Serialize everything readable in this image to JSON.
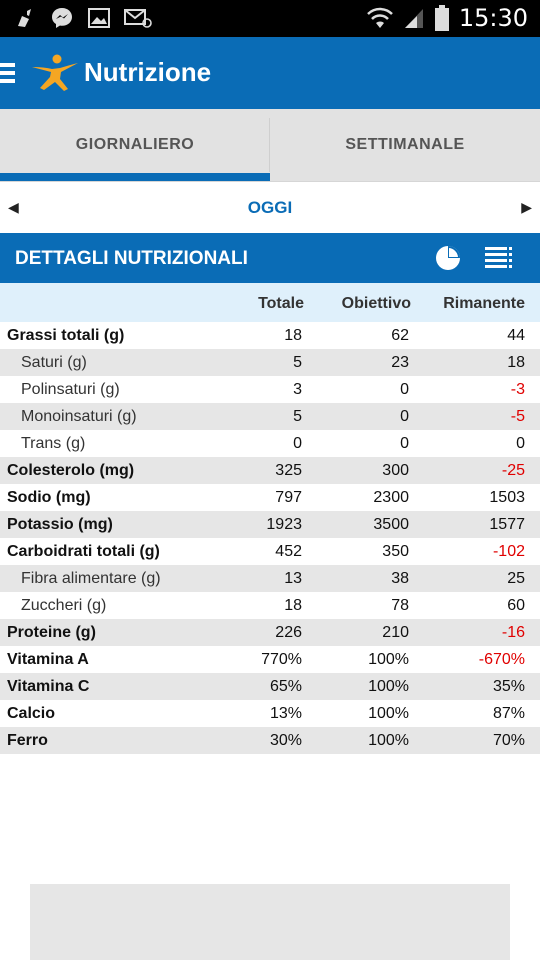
{
  "status_bar": {
    "time": "15:30",
    "left_icons": [
      "cleaner-icon",
      "messenger-icon",
      "gallery-icon",
      "email-icon"
    ],
    "right_icons": [
      "wifi-icon",
      "signal-icon",
      "battery-icon"
    ]
  },
  "header": {
    "title": "Nutrizione",
    "brand_color": "#0a6cb6"
  },
  "tabs": [
    {
      "label": "GIORNALIERO",
      "active": true
    },
    {
      "label": "SETTIMANALE",
      "active": false
    }
  ],
  "date_nav": {
    "label": "OGGI"
  },
  "section": {
    "title": "DETTAGLI NUTRIZIONALI"
  },
  "columns": {
    "total": "Totale",
    "goal": "Obiettivo",
    "remaining": "Rimanente"
  },
  "rows": [
    {
      "name": "Grassi totali (g)",
      "total": "18",
      "goal": "62",
      "remaining": "44",
      "negative": false,
      "sub": false
    },
    {
      "name": "Saturi (g)",
      "total": "5",
      "goal": "23",
      "remaining": "18",
      "negative": false,
      "sub": true
    },
    {
      "name": "Polinsaturi (g)",
      "total": "3",
      "goal": "0",
      "remaining": "-3",
      "negative": true,
      "sub": true
    },
    {
      "name": "Monoinsaturi (g)",
      "total": "5",
      "goal": "0",
      "remaining": "-5",
      "negative": true,
      "sub": true
    },
    {
      "name": "Trans (g)",
      "total": "0",
      "goal": "0",
      "remaining": "0",
      "negative": false,
      "sub": true
    },
    {
      "name": "Colesterolo (mg)",
      "total": "325",
      "goal": "300",
      "remaining": "-25",
      "negative": true,
      "sub": false
    },
    {
      "name": "Sodio (mg)",
      "total": "797",
      "goal": "2300",
      "remaining": "1503",
      "negative": false,
      "sub": false
    },
    {
      "name": "Potassio (mg)",
      "total": "1923",
      "goal": "3500",
      "remaining": "1577",
      "negative": false,
      "sub": false
    },
    {
      "name": "Carboidrati totali (g)",
      "total": "452",
      "goal": "350",
      "remaining": "-102",
      "negative": true,
      "sub": false
    },
    {
      "name": "Fibra alimentare (g)",
      "total": "13",
      "goal": "38",
      "remaining": "25",
      "negative": false,
      "sub": true
    },
    {
      "name": "Zuccheri (g)",
      "total": "18",
      "goal": "78",
      "remaining": "60",
      "negative": false,
      "sub": true
    },
    {
      "name": "Proteine (g)",
      "total": "226",
      "goal": "210",
      "remaining": "-16",
      "negative": true,
      "sub": false
    },
    {
      "name": "Vitamina A",
      "total": "770%",
      "goal": "100%",
      "remaining": "-670%",
      "negative": true,
      "sub": false
    },
    {
      "name": "Vitamina C",
      "total": "65%",
      "goal": "100%",
      "remaining": "35%",
      "negative": false,
      "sub": false
    },
    {
      "name": "Calcio",
      "total": "13%",
      "goal": "100%",
      "remaining": "87%",
      "negative": false,
      "sub": false
    },
    {
      "name": "Ferro",
      "total": "30%",
      "goal": "100%",
      "remaining": "70%",
      "negative": false,
      "sub": false
    }
  ]
}
